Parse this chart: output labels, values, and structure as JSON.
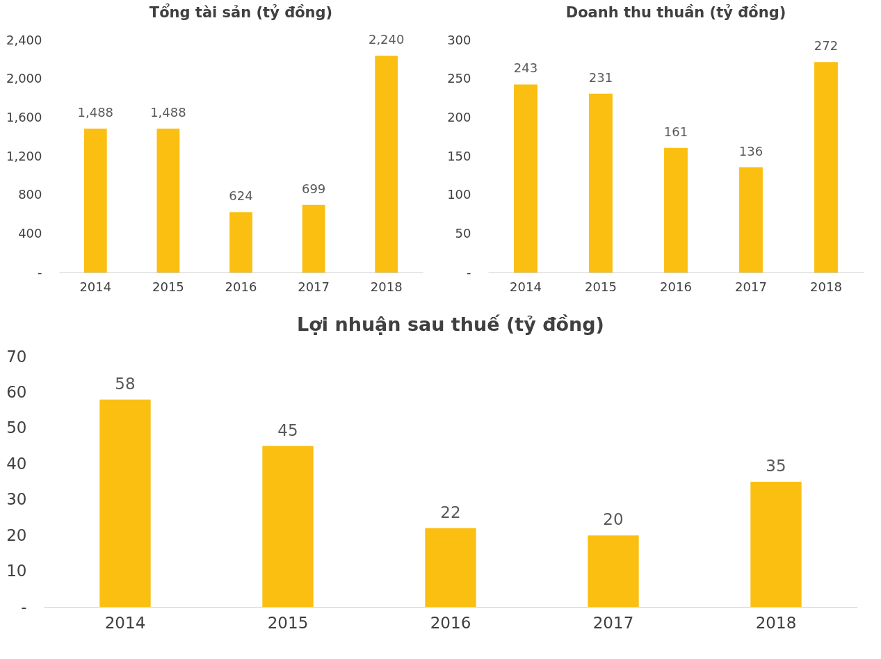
{
  "chart_data": [
    {
      "type": "bar",
      "title": "Tổng tài sản (tỷ đồng)",
      "categories": [
        "2014",
        "2015",
        "2016",
        "2017",
        "2018"
      ],
      "values": [
        1488,
        1488,
        624,
        699,
        2240
      ],
      "value_labels": [
        "1,488",
        "1,488",
        "624",
        "699",
        "2,240"
      ],
      "color": "#fbbf12",
      "ylim": [
        0,
        2400
      ],
      "yticks": [
        {
          "value": 0,
          "label": "-"
        },
        400,
        800,
        {
          "value": 1200,
          "label": "1,200"
        },
        {
          "value": 1600,
          "label": "1,600"
        },
        {
          "value": 2000,
          "label": "2,000"
        },
        {
          "value": 2400,
          "label": "2,400"
        }
      ]
    },
    {
      "type": "bar",
      "title": "Doanh thu thuần (tỷ đồng)",
      "categories": [
        "2014",
        "2015",
        "2016",
        "2017",
        "2018"
      ],
      "values": [
        243,
        231,
        161,
        136,
        272
      ],
      "color": "#fbbf12",
      "ylim": [
        0,
        300
      ],
      "yticks": [
        {
          "value": 0,
          "label": "-"
        },
        50,
        100,
        150,
        200,
        250,
        300
      ],
      "data_labels": true
    },
    {
      "type": "bar",
      "title": "Lợi nhuận sau thuế (tỷ đồng)",
      "categories": [
        "2014",
        "2015",
        "2016",
        "2017",
        "2018"
      ],
      "values": [
        58,
        45,
        22,
        20,
        35
      ],
      "color": "#fbbf12",
      "ylim": [
        0,
        70
      ],
      "yticks": [
        {
          "value": 0,
          "label": "-"
        },
        10,
        20,
        30,
        40,
        50,
        60,
        70
      ],
      "data_labels": true
    }
  ]
}
